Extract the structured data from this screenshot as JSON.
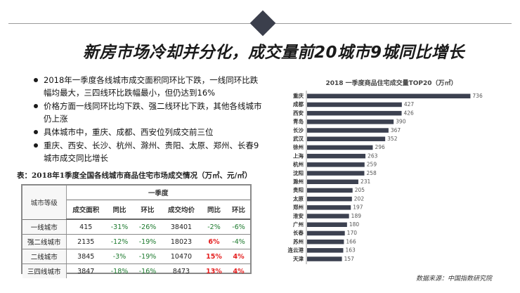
{
  "slide": {
    "title": "新房市场冷却并分化，成交量前20城市9城同比增长"
  },
  "bullets": [
    "2018年一季度各线城市成交面积同环比下跌，一线同环比跌幅均最大，三四线环比跌幅最小，但仍达到16%",
    "价格方面一线同环比均下跌、强二线环比下跌，其他各线城市仍上涨",
    "具体城市中，重庆、成都、西安位列成交前三位",
    "重庆、西安、长沙、杭州、滁州、贵阳、太原、郑州、长春9城市成交同比增长"
  ],
  "table": {
    "caption": "表：2018年1季度全国各线城市商品住宅市场成交情况（万㎡、元/㎡）",
    "corner_header": "城市等级",
    "group_header": "一季度",
    "columns": [
      "成交面积",
      "同比",
      "环比",
      "成交均价",
      "同比",
      "环比"
    ],
    "rows": [
      {
        "city": "一线城市",
        "cells": [
          "415",
          "-31%",
          "-26%",
          "38401",
          "-2%",
          "-6%"
        ],
        "colors": [
          "",
          "green",
          "green",
          "",
          "green",
          "green"
        ]
      },
      {
        "city": "强二线城市",
        "cells": [
          "2135",
          "-12%",
          "-19%",
          "18023",
          "6%",
          "-4%"
        ],
        "colors": [
          "",
          "green",
          "green",
          "",
          "red",
          "green"
        ]
      },
      {
        "city": "二线城市",
        "cells": [
          "3845",
          "-3%",
          "-19%",
          "10470",
          "15%",
          "4%"
        ],
        "colors": [
          "",
          "green",
          "green",
          "",
          "red",
          "red"
        ]
      },
      {
        "city": "三四线城市",
        "cells": [
          "3847",
          "-18%",
          "-16%",
          "8473",
          "13%",
          "4%"
        ],
        "colors": [
          "",
          "green",
          "green",
          "",
          "red",
          "red"
        ]
      }
    ]
  },
  "chart_data": {
    "type": "bar",
    "orientation": "horizontal",
    "title": "2018 一季度商品住宅成交量TOP20（万㎡）",
    "categories": [
      "重庆",
      "成都",
      "西安",
      "青岛",
      "长沙",
      "武汉",
      "徐州",
      "上海",
      "杭州",
      "沈阳",
      "滁州",
      "贵阳",
      "太原",
      "郑州",
      "淮安",
      "广州",
      "长春",
      "苏州",
      "连云港",
      "天津"
    ],
    "values": [
      736,
      427,
      426,
      390,
      367,
      352,
      296,
      263,
      259,
      258,
      231,
      205,
      202,
      197,
      189,
      180,
      170,
      166,
      163,
      157
    ],
    "bar_color": "#3c4150",
    "xlim": [
      0,
      760
    ],
    "grid": false,
    "legend": "none"
  },
  "source": "数据来源：中国指数研究院"
}
